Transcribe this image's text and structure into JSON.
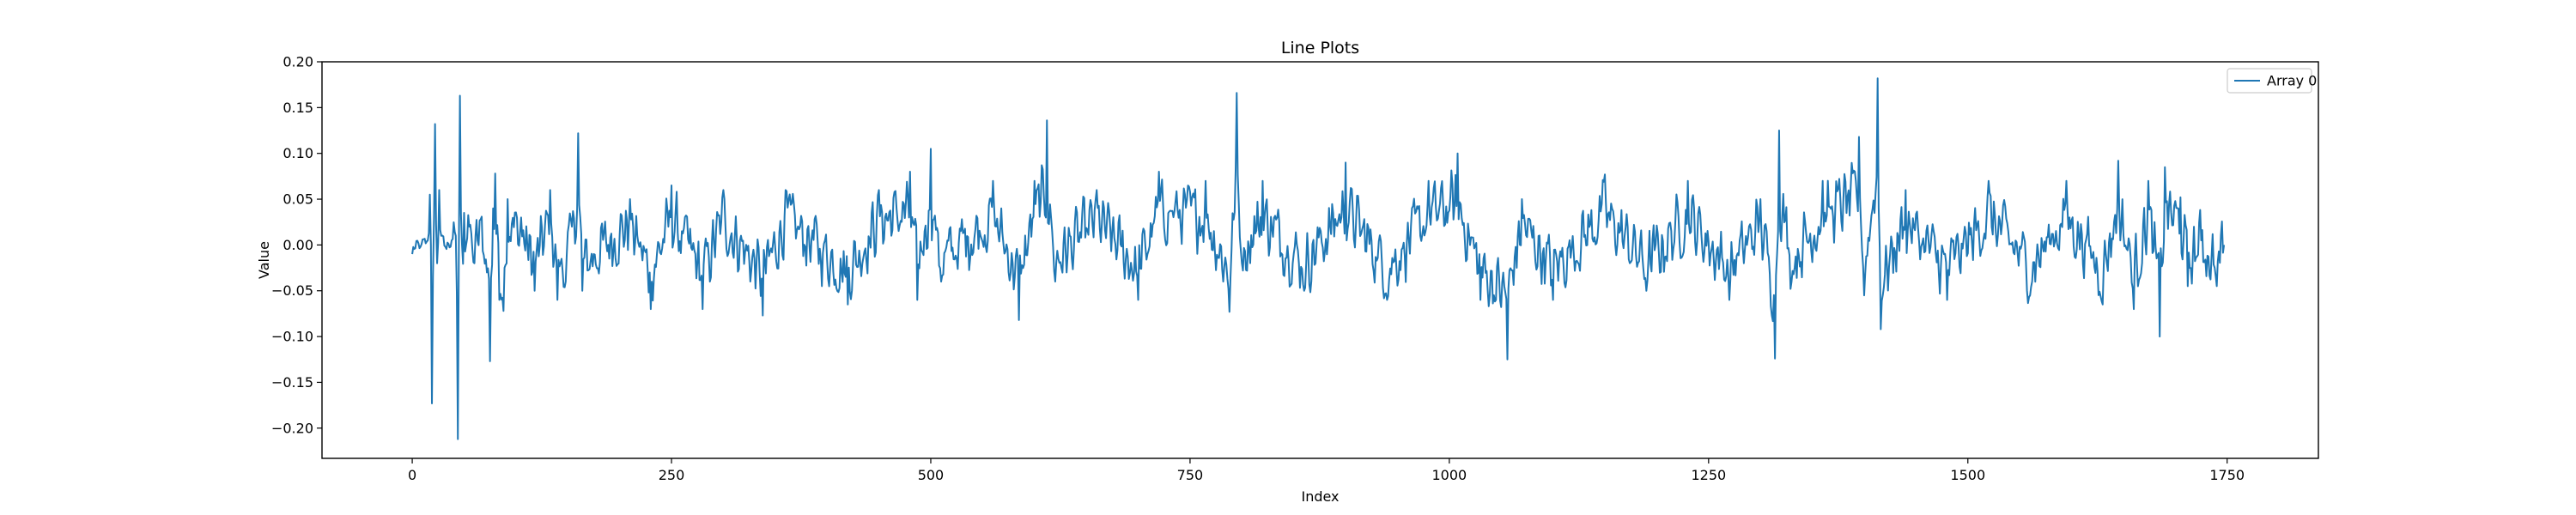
{
  "chart_data": {
    "type": "line",
    "title": "Line Plots",
    "xlabel": "Index",
    "ylabel": "Value",
    "xlim": [
      -87,
      1838
    ],
    "ylim": [
      -0.233,
      0.2
    ],
    "x_ticks": [
      0,
      250,
      500,
      750,
      1000,
      1250,
      1500,
      1750
    ],
    "y_ticks": [
      -0.2,
      -0.15,
      -0.1,
      -0.05,
      0.0,
      0.05,
      0.1,
      0.15,
      0.2
    ],
    "x_tick_labels": [
      "0",
      "250",
      "500",
      "750",
      "1000",
      "1250",
      "1500",
      "1750"
    ],
    "y_tick_labels": [
      "−0.20",
      "−0.15",
      "−0.10",
      "−0.05",
      "0.00",
      "0.05",
      "0.10",
      "0.15",
      "0.20"
    ],
    "grid": false,
    "legend_position": "top-right",
    "series": [
      {
        "name": "Array 0",
        "color": "#1f77b4",
        "x_start": 0,
        "x_end": 1747,
        "keypoints": [
          [
            0,
            -0.01
          ],
          [
            8,
            -0.002
          ],
          [
            15,
            0.005
          ],
          [
            17,
            0.055
          ],
          [
            18,
            0.0
          ],
          [
            19,
            -0.173
          ],
          [
            21,
            0.03
          ],
          [
            22,
            0.132
          ],
          [
            24,
            -0.02
          ],
          [
            26,
            0.06
          ],
          [
            28,
            0.01
          ],
          [
            32,
            -0.002
          ],
          [
            38,
            0.005
          ],
          [
            42,
            0.01
          ],
          [
            44,
            -0.212
          ],
          [
            46,
            0.163
          ],
          [
            48,
            0.0
          ],
          [
            50,
            0.035
          ],
          [
            55,
            0.02
          ],
          [
            60,
            -0.02
          ],
          [
            66,
            0.028
          ],
          [
            72,
            -0.03
          ],
          [
            75,
            -0.127
          ],
          [
            78,
            0.04
          ],
          [
            80,
            0.078
          ],
          [
            84,
            -0.06
          ],
          [
            88,
            -0.072
          ],
          [
            92,
            0.05
          ],
          [
            105,
            0.03
          ],
          [
            118,
            -0.05
          ],
          [
            133,
            0.06
          ],
          [
            140,
            -0.06
          ],
          [
            148,
            -0.04
          ],
          [
            154,
            0.02
          ],
          [
            160,
            0.122
          ],
          [
            164,
            -0.05
          ],
          [
            210,
            0.05
          ],
          [
            230,
            -0.07
          ],
          [
            250,
            0.065
          ],
          [
            280,
            -0.07
          ],
          [
            300,
            0.06
          ],
          [
            338,
            -0.077
          ],
          [
            360,
            0.06
          ],
          [
            420,
            -0.065
          ],
          [
            450,
            0.06
          ],
          [
            480,
            0.08
          ],
          [
            487,
            -0.06
          ],
          [
            500,
            0.105
          ],
          [
            510,
            -0.04
          ],
          [
            560,
            0.07
          ],
          [
            585,
            -0.082
          ],
          [
            600,
            0.07
          ],
          [
            612,
            0.136
          ],
          [
            620,
            -0.04
          ],
          [
            660,
            0.06
          ],
          [
            700,
            -0.06
          ],
          [
            720,
            0.08
          ],
          [
            765,
            0.07
          ],
          [
            788,
            -0.073
          ],
          [
            795,
            0.166
          ],
          [
            800,
            -0.02
          ],
          [
            820,
            0.07
          ],
          [
            860,
            -0.05
          ],
          [
            900,
            0.09
          ],
          [
            940,
            -0.06
          ],
          [
            980,
            0.07
          ],
          [
            1008,
            0.1
          ],
          [
            1030,
            -0.06
          ],
          [
            1056,
            -0.125
          ],
          [
            1070,
            0.05
          ],
          [
            1100,
            -0.06
          ],
          [
            1150,
            0.077
          ],
          [
            1190,
            -0.05
          ],
          [
            1230,
            0.07
          ],
          [
            1270,
            -0.06
          ],
          [
            1300,
            0.05
          ],
          [
            1314,
            -0.124
          ],
          [
            1318,
            0.125
          ],
          [
            1330,
            -0.04
          ],
          [
            1360,
            0.07
          ],
          [
            1395,
            0.118
          ],
          [
            1400,
            -0.055
          ],
          [
            1413,
            0.182
          ],
          [
            1416,
            -0.092
          ],
          [
            1440,
            0.06
          ],
          [
            1480,
            -0.06
          ],
          [
            1520,
            0.07
          ],
          [
            1560,
            -0.055
          ],
          [
            1595,
            0.07
          ],
          [
            1630,
            -0.065
          ],
          [
            1645,
            0.092
          ],
          [
            1660,
            -0.07
          ],
          [
            1674,
            0.07
          ],
          [
            1685,
            -0.1
          ],
          [
            1690,
            0.085
          ],
          [
            1705,
            0.052
          ],
          [
            1712,
            -0.045
          ],
          [
            1725,
            0.005
          ],
          [
            1740,
            -0.045
          ],
          [
            1747,
            0.0
          ]
        ]
      }
    ]
  }
}
